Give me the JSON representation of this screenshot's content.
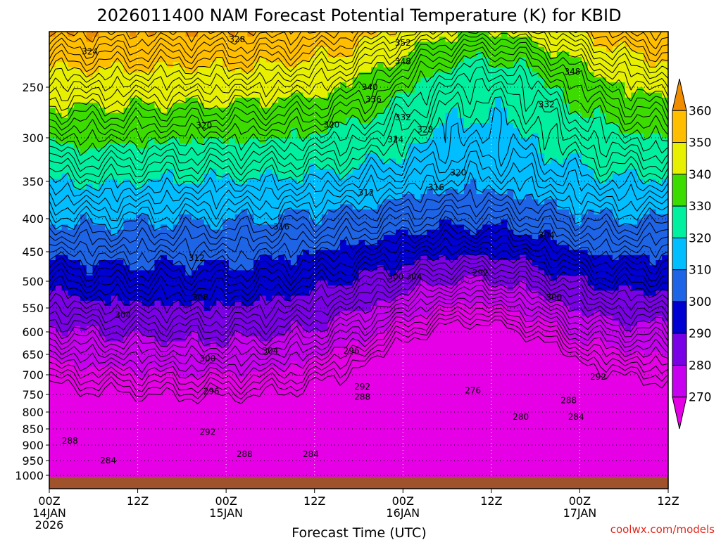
{
  "chart_data": {
    "type": "contour",
    "title": "2026011400 NAM Forecast Potential Temperature (K) for KBID",
    "xlabel": "Forecast Time (UTC)",
    "ylabel": "Pressure (hPa)",
    "credit": "coolwx.com/models",
    "x_hours_range": [
      0,
      84
    ],
    "y_range": [
      1010,
      200
    ],
    "x_ticks": [
      {
        "hour": 0,
        "lines": [
          "00Z",
          "14JAN",
          "2026"
        ]
      },
      {
        "hour": 12,
        "lines": [
          "12Z"
        ]
      },
      {
        "hour": 24,
        "lines": [
          "00Z",
          "15JAN"
        ]
      },
      {
        "hour": 36,
        "lines": [
          "12Z"
        ]
      },
      {
        "hour": 48,
        "lines": [
          "00Z",
          "16JAN"
        ]
      },
      {
        "hour": 60,
        "lines": [
          "12Z"
        ]
      },
      {
        "hour": 72,
        "lines": [
          "00Z",
          "17JAN"
        ]
      },
      {
        "hour": 84,
        "lines": [
          "12Z"
        ]
      }
    ],
    "y_ticks": [
      250,
      300,
      350,
      400,
      450,
      500,
      550,
      600,
      650,
      700,
      750,
      800,
      850,
      900,
      950,
      1000
    ],
    "colorbar": {
      "ticks": [
        360,
        350,
        340,
        330,
        320,
        310,
        300,
        290,
        280,
        270
      ],
      "bands": [
        {
          "range": "<270",
          "color": "#e600e6"
        },
        {
          "range": "270-280",
          "color": "#c800f0"
        },
        {
          "range": "280-290",
          "color": "#7a00e6"
        },
        {
          "range": "290-300",
          "color": "#0000d2"
        },
        {
          "range": "300-310",
          "color": "#1e64e6"
        },
        {
          "range": "310-320",
          "color": "#00beff"
        },
        {
          "range": "320-330",
          "color": "#00f0a0"
        },
        {
          "range": "330-340",
          "color": "#3cdc00"
        },
        {
          "range": "340-350",
          "color": "#e6f000"
        },
        {
          "range": "350-360",
          "color": "#ffbe00"
        },
        {
          "range": ">360",
          "color": "#f08c00"
        }
      ]
    },
    "terrain_color": "#a0522d",
    "contour_interval_K": 2,
    "contour_labels": [
      {
        "value": 324,
        "hour": 5.5,
        "p": 218
      },
      {
        "value": 328,
        "hour": 25.5,
        "p": 207
      },
      {
        "value": 320,
        "hour": 21.0,
        "p": 288
      },
      {
        "value": 320,
        "hour": 38.3,
        "p": 287
      },
      {
        "value": 352,
        "hour": 48.0,
        "p": 210
      },
      {
        "value": 348,
        "hour": 48.0,
        "p": 227
      },
      {
        "value": 348,
        "hour": 71.0,
        "p": 236
      },
      {
        "value": 340,
        "hour": 43.5,
        "p": 250
      },
      {
        "value": 336,
        "hour": 44.0,
        "p": 262
      },
      {
        "value": 332,
        "hour": 48.0,
        "p": 280
      },
      {
        "value": 328,
        "hour": 51.0,
        "p": 292
      },
      {
        "value": 332,
        "hour": 67.5,
        "p": 267
      },
      {
        "value": 324,
        "hour": 47.0,
        "p": 302
      },
      {
        "value": 320,
        "hour": 55.5,
        "p": 340
      },
      {
        "value": 316,
        "hour": 52.5,
        "p": 358
      },
      {
        "value": 312,
        "hour": 43.0,
        "p": 365
      },
      {
        "value": 316,
        "hour": 31.5,
        "p": 412
      },
      {
        "value": 312,
        "hour": 20.0,
        "p": 461
      },
      {
        "value": 304,
        "hour": 67.5,
        "p": 425
      },
      {
        "value": 308,
        "hour": 20.5,
        "p": 530
      },
      {
        "value": 304,
        "hour": 10.0,
        "p": 565
      },
      {
        "value": 300,
        "hour": 47.0,
        "p": 492
      },
      {
        "value": 304,
        "hour": 49.5,
        "p": 492
      },
      {
        "value": 292,
        "hour": 58.5,
        "p": 486
      },
      {
        "value": 300,
        "hour": 68.5,
        "p": 530
      },
      {
        "value": 296,
        "hour": 41.0,
        "p": 642
      },
      {
        "value": 304,
        "hour": 30.0,
        "p": 642
      },
      {
        "value": 300,
        "hour": 21.5,
        "p": 660
      },
      {
        "value": 296,
        "hour": 22.0,
        "p": 742
      },
      {
        "value": 292,
        "hour": 42.5,
        "p": 730
      },
      {
        "value": 288,
        "hour": 42.5,
        "p": 757
      },
      {
        "value": 292,
        "hour": 74.5,
        "p": 705
      },
      {
        "value": 292,
        "hour": 21.5,
        "p": 860
      },
      {
        "value": 288,
        "hour": 2.8,
        "p": 887
      },
      {
        "value": 276,
        "hour": 57.5,
        "p": 740
      },
      {
        "value": 280,
        "hour": 64.0,
        "p": 815
      },
      {
        "value": 288,
        "hour": 70.5,
        "p": 767
      },
      {
        "value": 284,
        "hour": 71.5,
        "p": 815
      },
      {
        "value": 284,
        "hour": 8.0,
        "p": 950
      },
      {
        "value": 288,
        "hour": 26.5,
        "p": 930
      },
      {
        "value": 284,
        "hour": 35.5,
        "p": 930
      }
    ]
  }
}
